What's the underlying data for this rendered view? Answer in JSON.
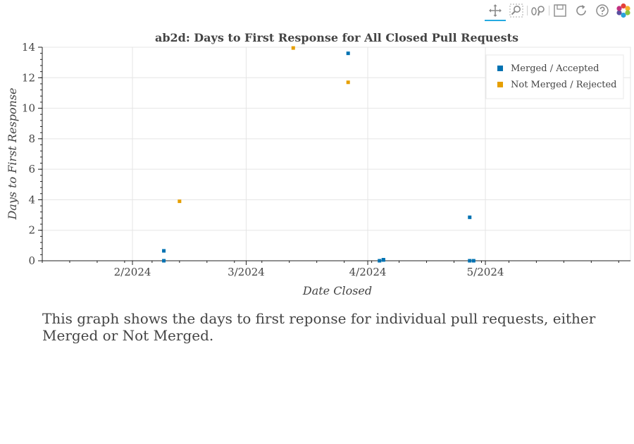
{
  "toolbar": {
    "tools": [
      "pan-icon",
      "box-zoom-icon",
      "wheel-zoom-icon",
      "save-icon",
      "reset-icon",
      "help-icon",
      "bokeh-logo-icon"
    ]
  },
  "chart_data": {
    "type": "scatter",
    "title": "ab2d: Days to First Response for All Closed Pull Requests",
    "xlabel": "Date Closed",
    "ylabel": "Days to First Response",
    "x_axis_type": "datetime",
    "xlim": [
      "2024-01-09",
      "2024-06-07"
    ],
    "ylim": [
      0,
      14
    ],
    "x_ticks": [
      "2024-02-01",
      "2024-03-01",
      "2024-04-01",
      "2024-05-01"
    ],
    "x_tick_labels": [
      "2/2024",
      "3/2024",
      "4/2024",
      "5/2024"
    ],
    "y_ticks": [
      0,
      2,
      4,
      6,
      8,
      10,
      12,
      14
    ],
    "y_tick_labels": [
      "0",
      "2",
      "4",
      "6",
      "8",
      "10",
      "12",
      "14"
    ],
    "grid": true,
    "legend_position": "top-right",
    "series": [
      {
        "name": "Merged / Accepted",
        "color": "#0072b2",
        "points": [
          {
            "x": "2024-02-09",
            "y": 0.65
          },
          {
            "x": "2024-02-09",
            "y": 0.0
          },
          {
            "x": "2024-03-27",
            "y": 13.6
          },
          {
            "x": "2024-04-04",
            "y": 0.0
          },
          {
            "x": "2024-04-05",
            "y": 0.05
          },
          {
            "x": "2024-04-05",
            "y": 0.07
          },
          {
            "x": "2024-04-27",
            "y": 2.85
          },
          {
            "x": "2024-04-27",
            "y": 0.0
          },
          {
            "x": "2024-04-28",
            "y": 0.0
          }
        ]
      },
      {
        "name": "Not Merged / Rejected",
        "color": "#e69f00",
        "points": [
          {
            "x": "2024-02-13",
            "y": 3.9
          },
          {
            "x": "2024-03-13",
            "y": 13.95
          },
          {
            "x": "2024-03-27",
            "y": 11.7
          }
        ]
      }
    ]
  },
  "caption": "This graph shows the days to first reponse for individual pull requests, either Merged or Not Merged."
}
